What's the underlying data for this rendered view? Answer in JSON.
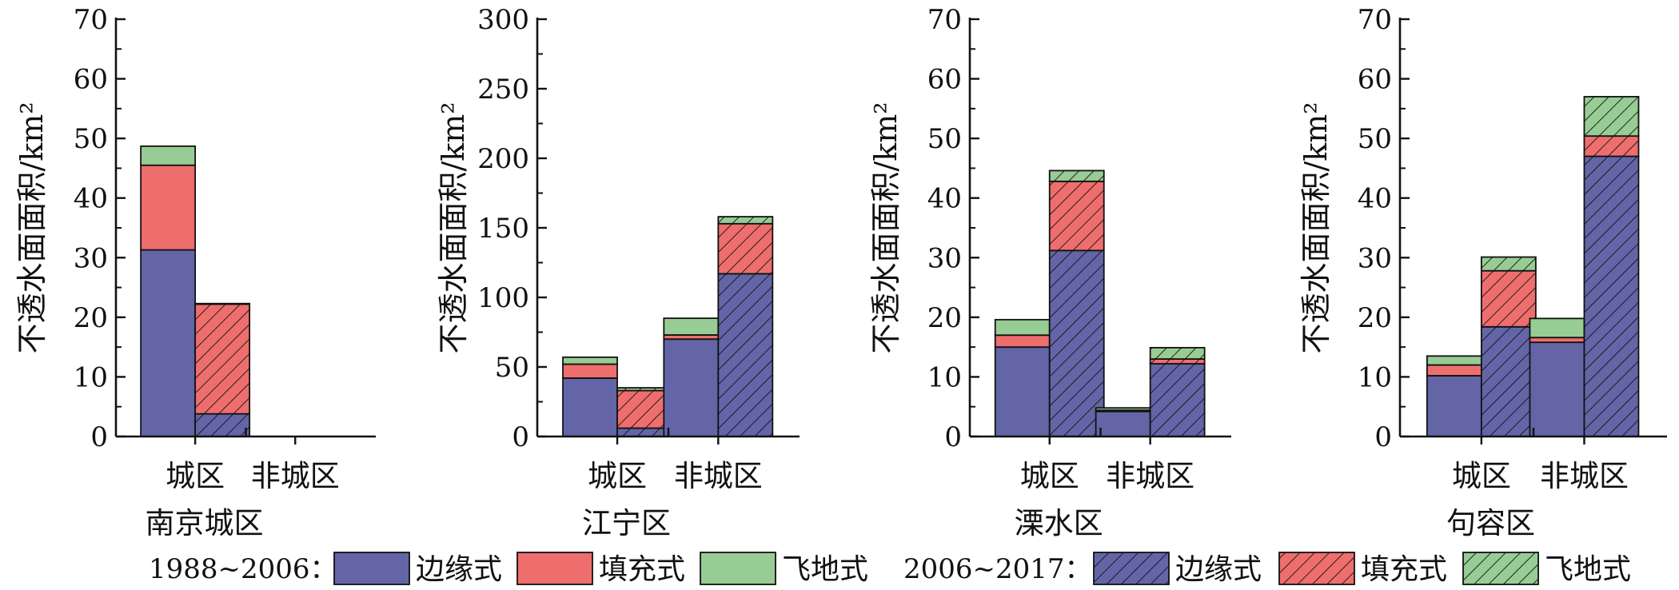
{
  "y_axis_label": "不透水面面积/km²",
  "legend": {
    "period_a_label": "1988~2006：",
    "period_b_label": "2006~2017：",
    "items": [
      "边缘式",
      "填充式",
      "飞地式"
    ]
  },
  "colors": {
    "edge": "#6465A6",
    "infill": "#EE6E6E",
    "enclave": "#97CC94",
    "axis": "#111111"
  },
  "chart_data": [
    {
      "type": "bar",
      "stacked": true,
      "title": "南京城区",
      "categories": [
        "城区",
        "非城区"
      ],
      "ylim": [
        0,
        70
      ],
      "yticks": [
        0,
        10,
        20,
        30,
        40,
        50,
        60,
        70
      ],
      "periods": [
        {
          "name": "1988~2006",
          "pattern": "solid",
          "edge": [
            31.3,
            0
          ],
          "infill": [
            14.2,
            0
          ],
          "enclave": [
            3.2,
            0
          ]
        },
        {
          "name": "2006~2017",
          "pattern": "hatched",
          "edge": [
            3.8,
            0
          ],
          "infill": [
            18.4,
            0
          ],
          "enclave": [
            0.1,
            0
          ]
        }
      ]
    },
    {
      "type": "bar",
      "stacked": true,
      "title": "江宁区",
      "categories": [
        "城区",
        "非城区"
      ],
      "ylim": [
        0,
        300
      ],
      "yticks": [
        0,
        50,
        100,
        150,
        200,
        250,
        300
      ],
      "periods": [
        {
          "name": "1988~2006",
          "pattern": "solid",
          "edge": [
            42,
            70
          ],
          "infill": [
            10,
            3
          ],
          "enclave": [
            5,
            12
          ]
        },
        {
          "name": "2006~2017",
          "pattern": "hatched",
          "edge": [
            6,
            117
          ],
          "infill": [
            27,
            36
          ],
          "enclave": [
            2,
            5
          ]
        }
      ]
    },
    {
      "type": "bar",
      "stacked": true,
      "title": "溧水区",
      "categories": [
        "城区",
        "非城区"
      ],
      "ylim": [
        0,
        70
      ],
      "yticks": [
        0,
        10,
        20,
        30,
        40,
        50,
        60,
        70
      ],
      "periods": [
        {
          "name": "1988~2006",
          "pattern": "solid",
          "edge": [
            15,
            4.2
          ],
          "infill": [
            2,
            0.2
          ],
          "enclave": [
            2.6,
            0.4
          ]
        },
        {
          "name": "2006~2017",
          "pattern": "hatched",
          "edge": [
            31.2,
            12.2
          ],
          "infill": [
            11.6,
            0.8
          ],
          "enclave": [
            1.8,
            1.9
          ]
        }
      ]
    },
    {
      "type": "bar",
      "stacked": true,
      "title": "句容区",
      "categories": [
        "城区",
        "非城区"
      ],
      "ylim": [
        0,
        70
      ],
      "yticks": [
        0,
        10,
        20,
        30,
        40,
        50,
        60,
        70
      ],
      "periods": [
        {
          "name": "1988~2006",
          "pattern": "solid",
          "edge": [
            10.2,
            15.8
          ],
          "infill": [
            1.8,
            0.8
          ],
          "enclave": [
            1.5,
            3.2
          ]
        },
        {
          "name": "2006~2017",
          "pattern": "hatched",
          "edge": [
            18.4,
            47
          ],
          "infill": [
            9.4,
            3.4
          ],
          "enclave": [
            2.3,
            6.6
          ]
        }
      ]
    }
  ]
}
